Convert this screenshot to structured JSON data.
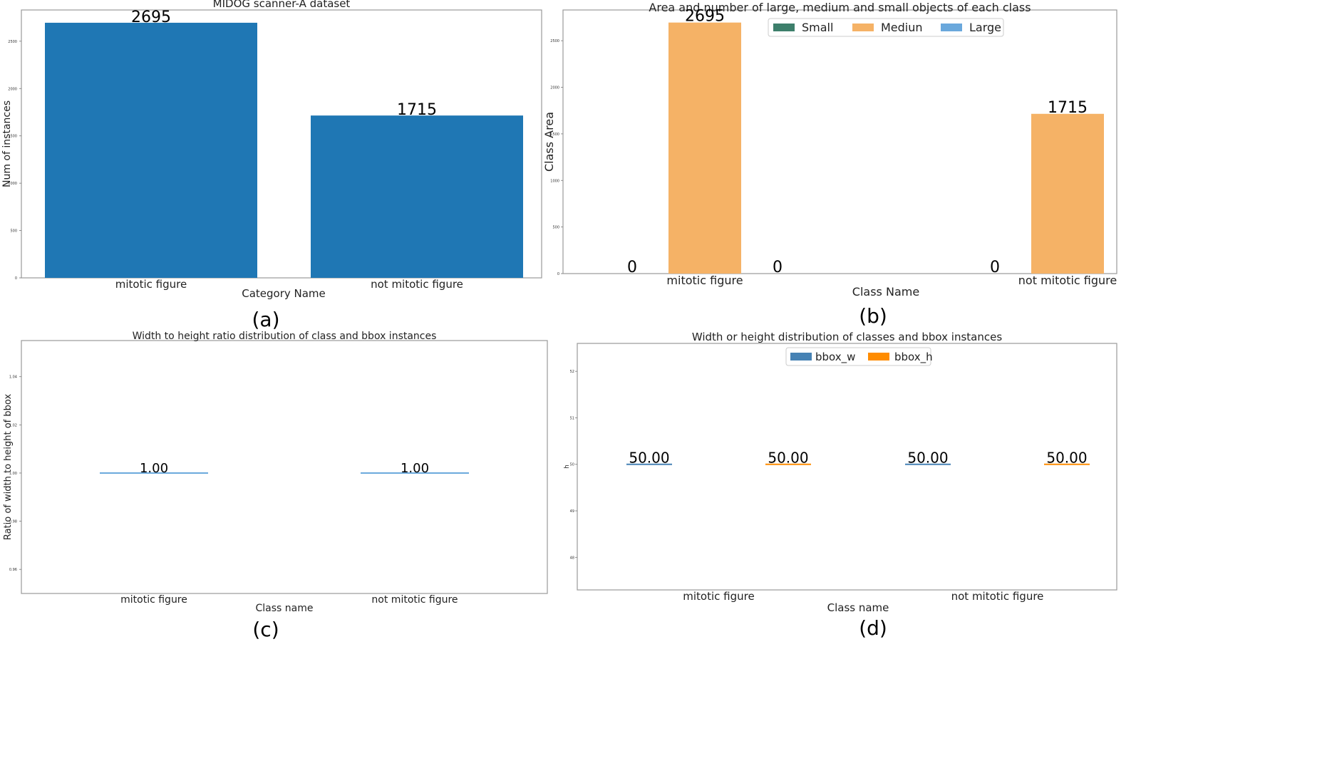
{
  "chart_data": [
    {
      "panel_label": "(a)",
      "type": "bar",
      "title": "MIDOG scanner-A dataset",
      "xlabel": "Category Name",
      "ylabel": "Num of instances",
      "categories": [
        "mitotic figure",
        "not mitotic figure"
      ],
      "values": [
        2695,
        1715
      ],
      "data_labels": [
        "2695",
        "1715"
      ],
      "yticks": [
        "0",
        "500",
        "1000",
        "1500",
        "2000",
        "2500"
      ],
      "ylim": [
        0,
        2830
      ],
      "colors": [
        "#1f77b4"
      ],
      "legend": "none",
      "grid": false
    },
    {
      "panel_label": "(b)",
      "type": "bar",
      "title": "Area and number of large, medium and small objects of each class",
      "xlabel": "Class Name",
      "ylabel": "Class Area",
      "categories": [
        "mitotic figure",
        "not mitotic figure"
      ],
      "series": [
        {
          "name": "Small",
          "color": "#3d7f6b",
          "values": [
            0,
            0
          ],
          "labels": [
            "0",
            "0"
          ]
        },
        {
          "name": "Mediun",
          "color": "#f5b266",
          "values": [
            2695,
            1715
          ],
          "labels": [
            "2695",
            "1715"
          ]
        },
        {
          "name": "Large",
          "color": "#6aa8dc",
          "values": [
            0,
            null
          ],
          "labels": [
            "0",
            ""
          ]
        }
      ],
      "yticks": [
        "0",
        "500",
        "1000",
        "1500",
        "2000",
        "2500"
      ],
      "ylim": [
        0,
        2830
      ],
      "legend": "top-center",
      "grid": false
    },
    {
      "panel_label": "(c)",
      "type": "bar",
      "title": "Width to height ratio distribution of class and bbox instances",
      "xlabel": "Class name",
      "ylabel": "Ratio of width to height of bbox",
      "categories": [
        "mitotic figure",
        "not mitotic figure"
      ],
      "values": [
        1.0,
        1.0
      ],
      "data_labels": [
        "1.00",
        "1.00"
      ],
      "yticks": [
        "0.96",
        "0.98",
        "1.00",
        "1.02",
        "1.04"
      ],
      "ylim": [
        0.95,
        1.055
      ],
      "colors": [
        "#6aa8dc"
      ],
      "legend": "none",
      "grid": false
    },
    {
      "panel_label": "(d)",
      "type": "bar",
      "title": "Width or height distribution of classes and bbox instances",
      "xlabel": "Class name",
      "ylabel": "h",
      "categories": [
        "mitotic figure",
        "not mitotic figure"
      ],
      "series": [
        {
          "name": "bbox_w",
          "color": "#4682b4",
          "values": [
            50.0,
            50.0
          ],
          "labels": [
            "50.00",
            "50.00"
          ]
        },
        {
          "name": "bbox_h",
          "color": "#ff8c00",
          "values": [
            50.0,
            50.0
          ],
          "labels": [
            "50.00",
            "50.00"
          ]
        }
      ],
      "yticks": [
        "48",
        "49",
        "50",
        "51",
        "52"
      ],
      "ylim": [
        47.3,
        52.6
      ],
      "legend": "top-center",
      "grid": false
    }
  ]
}
